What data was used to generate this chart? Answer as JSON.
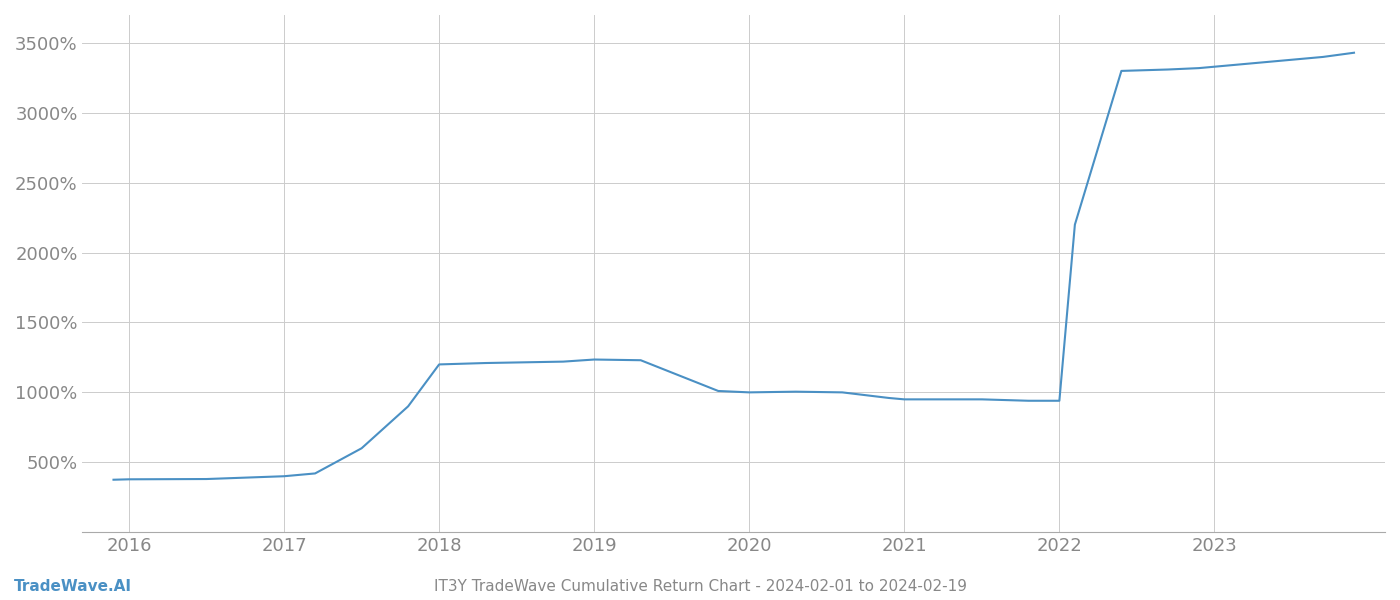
{
  "title": "IT3Y TradeWave Cumulative Return Chart - 2024-02-01 to 2024-02-19",
  "watermark": "TradeWave.AI",
  "line_color": "#4a90c4",
  "background_color": "#ffffff",
  "grid_color": "#cccccc",
  "x_values": [
    2015.9,
    2016.0,
    2016.5,
    2017.0,
    2017.2,
    2017.5,
    2017.8,
    2018.0,
    2018.3,
    2018.8,
    2019.0,
    2019.3,
    2019.8,
    2020.0,
    2020.3,
    2020.6,
    2020.9,
    2021.0,
    2021.2,
    2021.5,
    2021.8,
    2022.0,
    2022.1,
    2022.4,
    2022.7,
    2022.9,
    2023.0,
    2023.3,
    2023.7,
    2023.9
  ],
  "y_values": [
    375,
    378,
    380,
    400,
    420,
    600,
    900,
    1200,
    1210,
    1220,
    1235,
    1230,
    1010,
    1000,
    1005,
    1000,
    960,
    950,
    950,
    950,
    940,
    940,
    2200,
    3300,
    3310,
    3320,
    3330,
    3360,
    3400,
    3430
  ],
  "xlim": [
    2015.7,
    2024.1
  ],
  "ylim": [
    0,
    3700
  ],
  "yticks": [
    0,
    500,
    1000,
    1500,
    2000,
    2500,
    3000,
    3500
  ],
  "ytick_labels": [
    "",
    "500%",
    "1000%",
    "1500%",
    "2000%",
    "2500%",
    "3000%",
    "3500%"
  ],
  "xticks": [
    2016,
    2017,
    2018,
    2019,
    2020,
    2021,
    2022,
    2023
  ],
  "xtick_labels": [
    "2016",
    "2017",
    "2018",
    "2019",
    "2020",
    "2021",
    "2022",
    "2023"
  ],
  "tick_fontsize": 13,
  "title_fontsize": 11,
  "watermark_fontsize": 11,
  "line_width": 1.5
}
